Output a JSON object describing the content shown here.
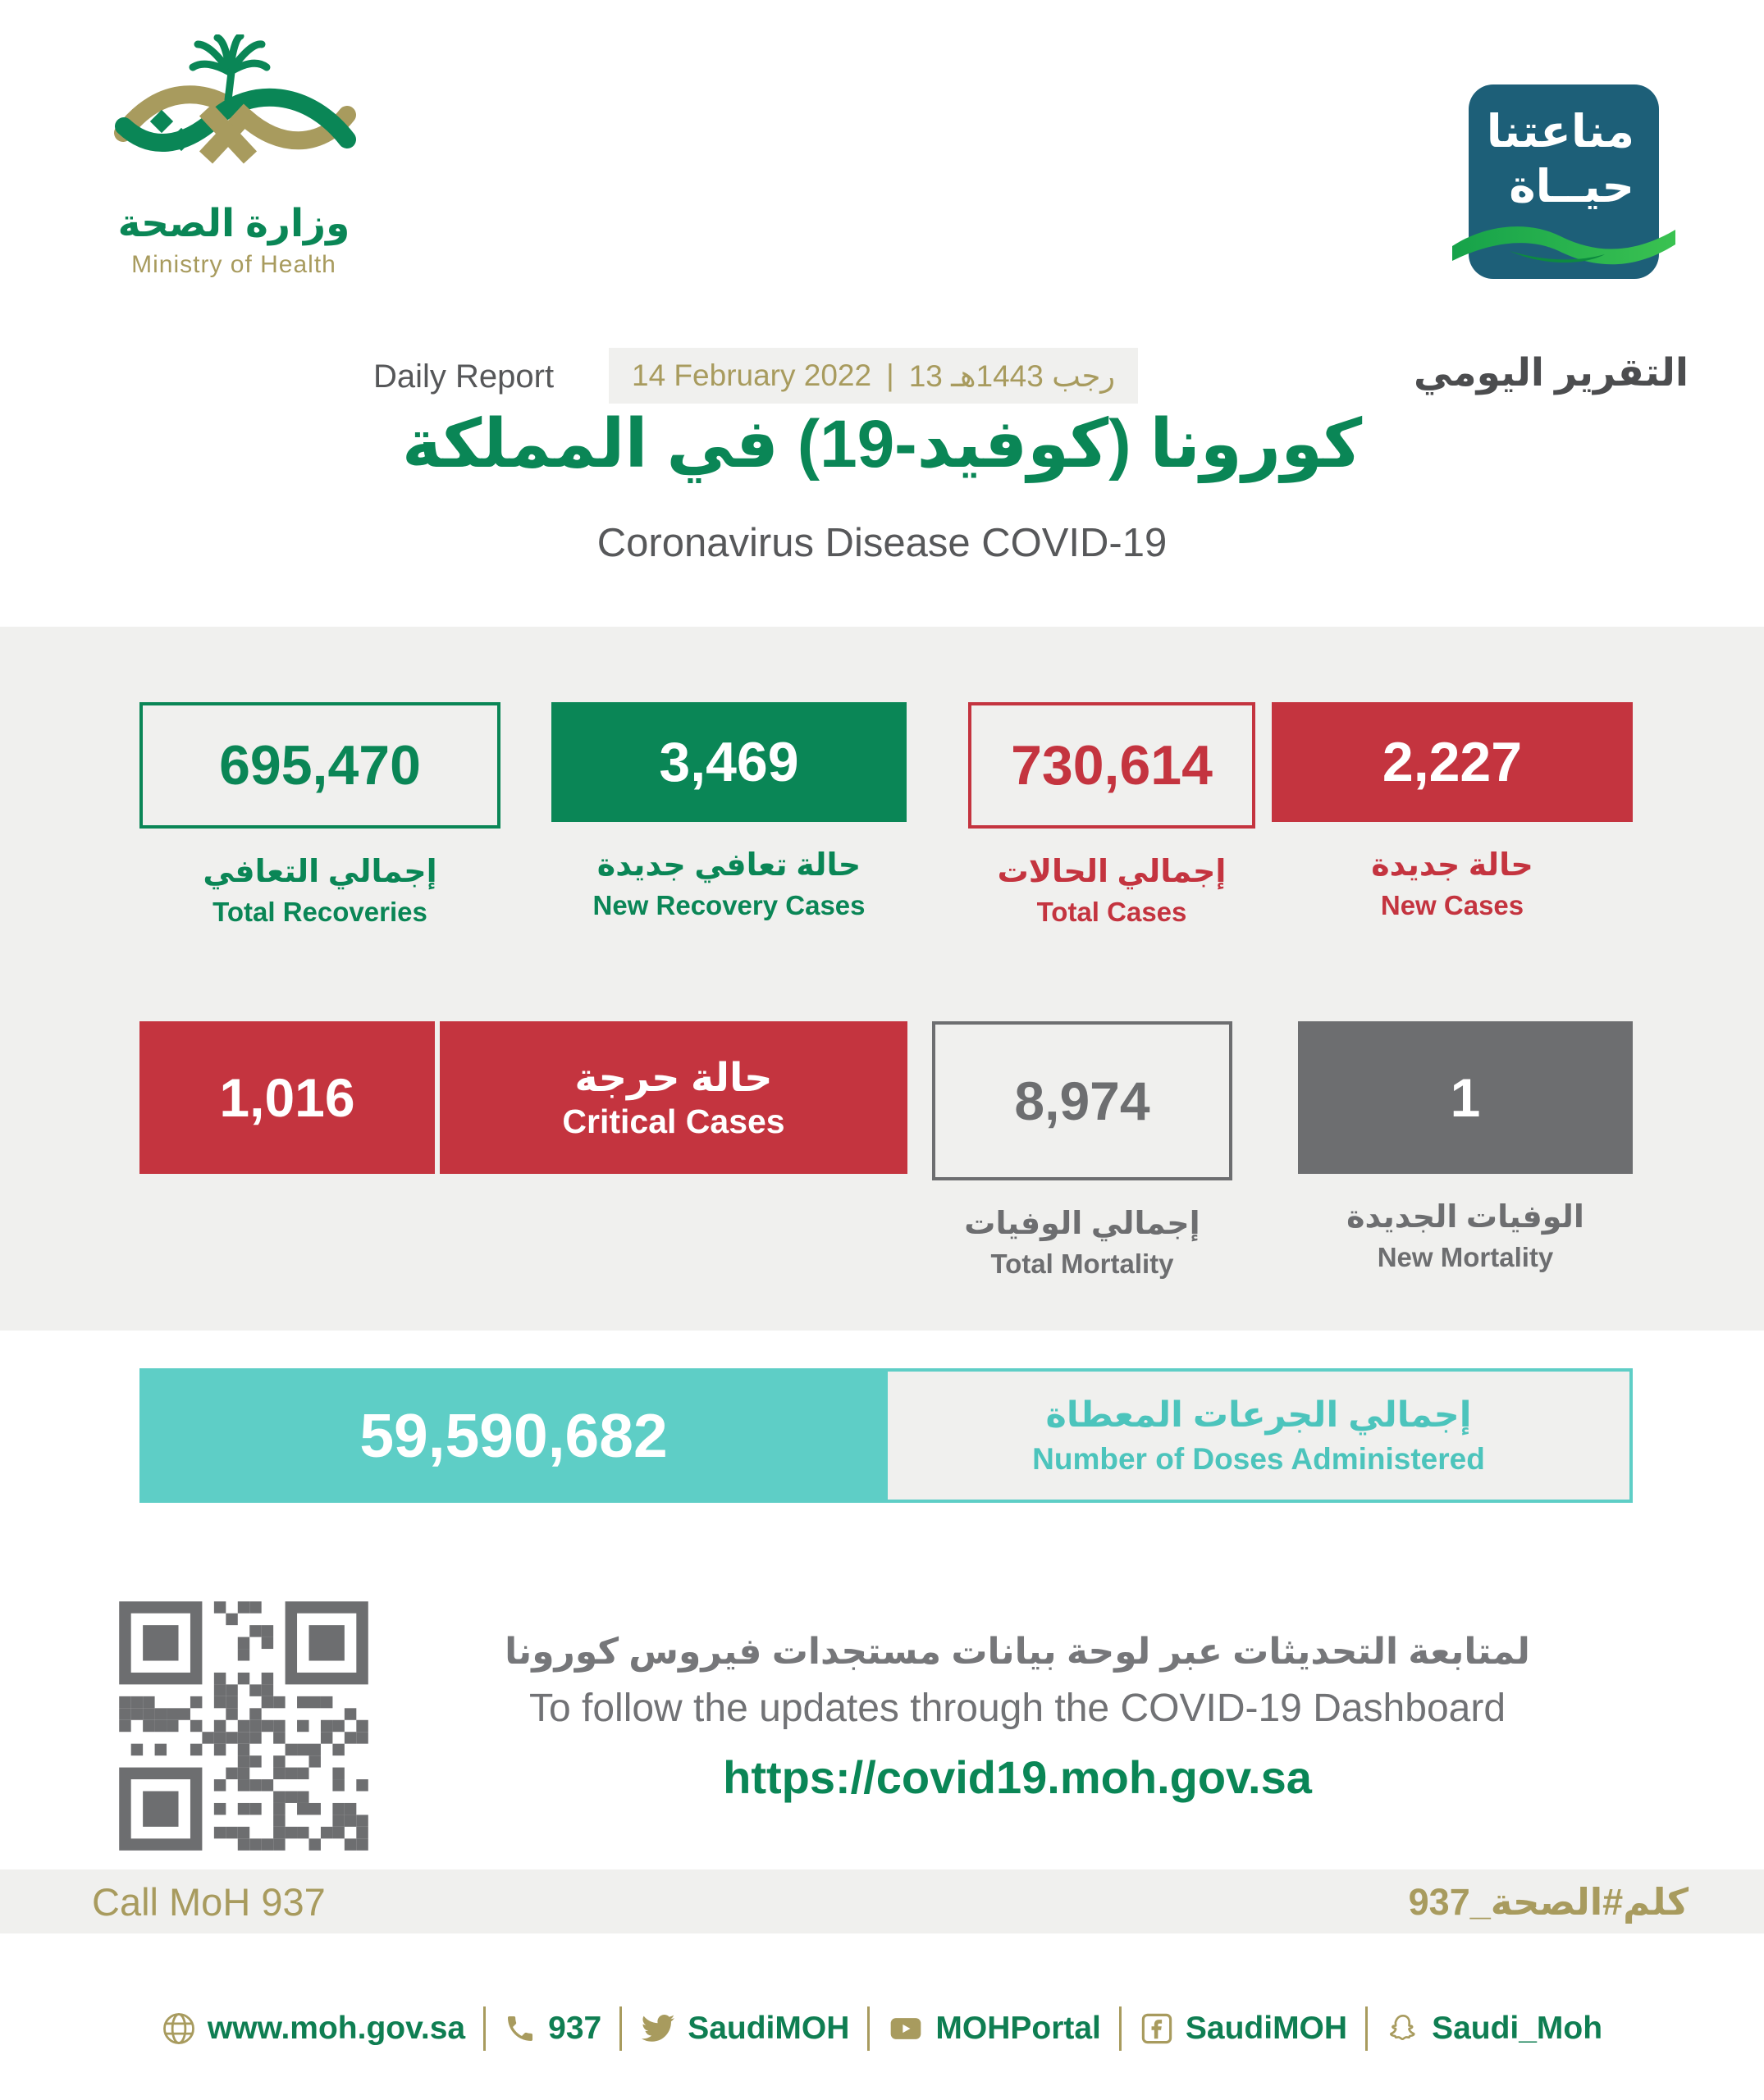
{
  "header": {
    "logo": {
      "arabic": "وزارة الصحة",
      "english": "Ministry of Health"
    },
    "badge": {
      "line1": "مناعتنا",
      "line2": "حيــاة"
    },
    "report": {
      "daily_report_en": "Daily Report",
      "date_gregorian": "14 February 2022",
      "date_separator": "|",
      "date_hijri": "13 رجب 1443هـ",
      "daily_report_ar": "التقرير اليومي"
    },
    "title_ar": "كورونا (كوفيد-19) في المملكة",
    "title_en": "Coronavirus Disease COVID-19"
  },
  "stats": {
    "total_recoveries": {
      "value": "695,470",
      "label_ar": "إجمالي التعافي",
      "label_en": "Total Recoveries"
    },
    "new_recovery_cases": {
      "value": "3,469",
      "label_ar": "حالة تعافي جديدة",
      "label_en": "New Recovery Cases"
    },
    "total_cases": {
      "value": "730,614",
      "label_ar": "إجمالي الحالات",
      "label_en": "Total Cases"
    },
    "new_cases": {
      "value": "2,227",
      "label_ar": "حالة جديدة",
      "label_en": "New Cases"
    },
    "critical_cases": {
      "value": "1,016",
      "label_ar": "حالة حرجة",
      "label_en": "Critical Cases"
    },
    "total_mortality": {
      "value": "8,974",
      "label_ar": "إجمالي الوفيات",
      "label_en": "Total Mortality"
    },
    "new_mortality": {
      "value": "1",
      "label_ar": "الوفيات الجديدة",
      "label_en": "New Mortality"
    },
    "doses": {
      "value": "59,590,682",
      "label_ar": "إجمالي الجرعات المعطاة",
      "label_en": "Number of Doses Administered"
    }
  },
  "dashboard": {
    "line_ar": "لمتابعة التحديثات عبر لوحة بيانات مستجدات فيروس كورونا",
    "line_en": "To follow the updates through the COVID-19 Dashboard",
    "url": "https://covid19.moh.gov.sa"
  },
  "footer": {
    "call_en": "Call MoH 937",
    "call_ar": "كلم#الصحة_937",
    "social": [
      {
        "icon": "globe-icon",
        "label": "www.moh.gov.sa"
      },
      {
        "icon": "phone-icon",
        "label": "937"
      },
      {
        "icon": "twitter-icon",
        "label": "SaudiMOH"
      },
      {
        "icon": "youtube-icon",
        "label": "MOHPortal"
      },
      {
        "icon": "facebook-icon",
        "label": "SaudiMOH"
      },
      {
        "icon": "snapchat-icon",
        "label": "Saudi_Moh"
      }
    ]
  },
  "colors": {
    "green": "#0a8656",
    "red": "#c4343f",
    "gray": "#6d6e70",
    "teal": "#5ecec6",
    "gold": "#a89b5e",
    "badge_teal": "#1d5f78",
    "band_bg": "#f0f0ee"
  }
}
